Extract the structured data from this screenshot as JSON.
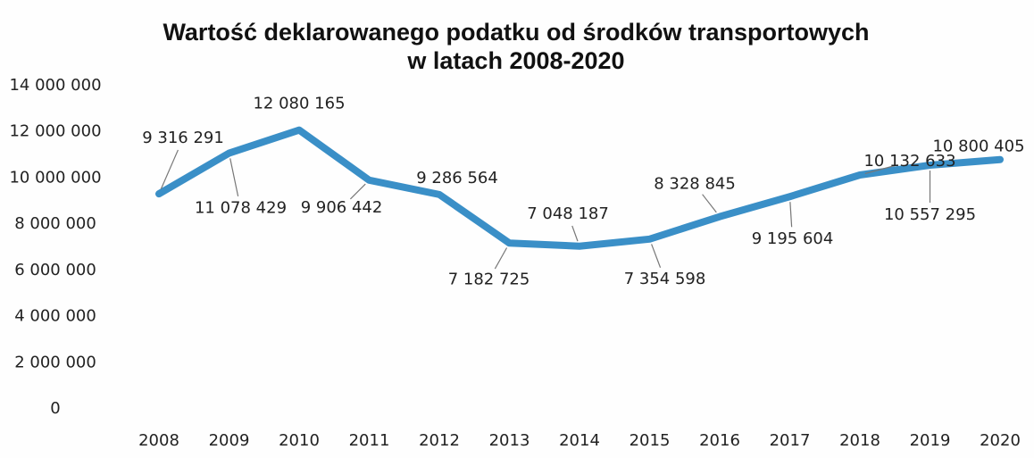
{
  "chart_data": {
    "type": "line",
    "title": [
      "Wartość deklarowanego podatku od środków transportowych",
      "w latach 2008-2020"
    ],
    "categories": [
      "2008",
      "2009",
      "2010",
      "2011",
      "2012",
      "2013",
      "2014",
      "2015",
      "2016",
      "2017",
      "2018",
      "2019",
      "2020"
    ],
    "series": [
      {
        "name": "Wartość deklarowanego podatku",
        "color": "#3a8fc7",
        "values": [
          9316291,
          11078429,
          12080165,
          9906442,
          9286564,
          7182725,
          7048187,
          7354598,
          8328845,
          9195604,
          10132633,
          10557295,
          10800405
        ],
        "value_labels": [
          "9 316 291",
          "11 078 429",
          "12 080 165",
          "9 906 442",
          "9 286 564",
          "7 182 725",
          "7 048 187",
          "7 354 598",
          "8 328 845",
          "9 195 604",
          "10 132 633",
          "10 557 295",
          "10 800 405"
        ]
      }
    ],
    "ylim": [
      0,
      14000000
    ],
    "yticks": [
      0,
      {
        "value": 2000000,
        "label": "2 000 000"
      },
      {
        "value": 4000000,
        "label": "4 000 000"
      },
      {
        "value": 6000000,
        "label": "6 000 000"
      },
      {
        "value": 8000000,
        "label": "8 000 000"
      },
      {
        "value": 10000000,
        "label": "10 000 000"
      },
      {
        "value": 12000000,
        "label": "12 000 000"
      },
      {
        "value": 14000000,
        "label": "14 000 000"
      }
    ],
    "grid": false
  }
}
